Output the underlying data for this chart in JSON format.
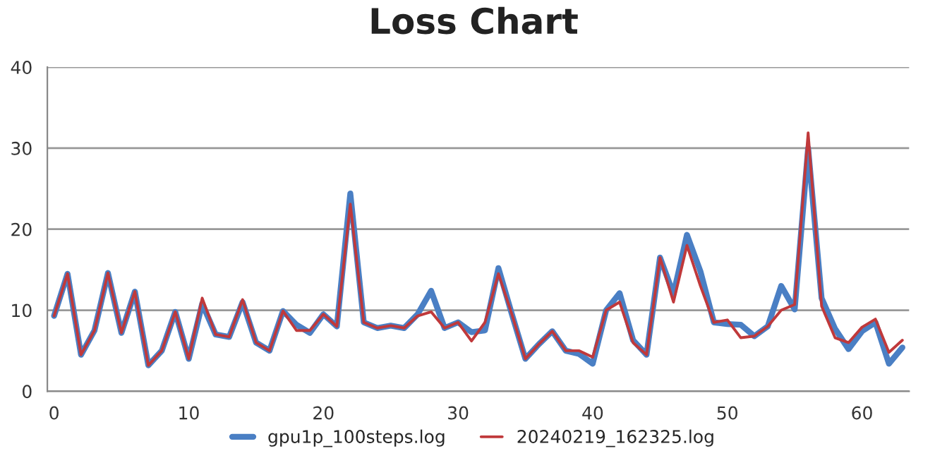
{
  "chart_data": {
    "type": "line",
    "title": "Loss Chart",
    "x": [
      0,
      1,
      2,
      3,
      4,
      5,
      6,
      7,
      8,
      9,
      10,
      11,
      12,
      13,
      14,
      15,
      16,
      17,
      18,
      19,
      20,
      21,
      22,
      23,
      24,
      25,
      26,
      27,
      28,
      29,
      30,
      31,
      32,
      33,
      34,
      35,
      36,
      37,
      38,
      39,
      40,
      41,
      42,
      43,
      44,
      45,
      46,
      47,
      48,
      49,
      50,
      51,
      52,
      53,
      54,
      55,
      56,
      57,
      58,
      59,
      60,
      61,
      62,
      63
    ],
    "series": [
      {
        "name": "gpu1p_100steps.log",
        "color": "#4a7fc4",
        "values": [
          9.3,
          14.5,
          4.5,
          7.5,
          14.6,
          7.2,
          12.3,
          3.2,
          5.0,
          9.8,
          4.0,
          10.8,
          7.0,
          6.7,
          11.0,
          6.0,
          5.0,
          9.9,
          8.2,
          7.2,
          9.5,
          8.0,
          24.4,
          8.5,
          7.8,
          8.1,
          7.8,
          9.5,
          12.4,
          7.8,
          8.5,
          7.3,
          7.5,
          15.2,
          9.5,
          4.0,
          5.8,
          7.4,
          5.0,
          4.6,
          3.4,
          10.0,
          12.1,
          6.3,
          4.5,
          16.5,
          12.0,
          19.3,
          14.8,
          8.5,
          8.3,
          8.2,
          6.8,
          8.0,
          13.0,
          10.1,
          30.0,
          11.5,
          7.7,
          5.2,
          7.4,
          8.5,
          3.4,
          5.4
        ]
      },
      {
        "name": "20240219_162325.log",
        "color": "#c0393b",
        "values": [
          9.3,
          14.5,
          4.5,
          7.5,
          14.6,
          7.2,
          12.3,
          3.2,
          5.0,
          9.8,
          4.0,
          11.5,
          7.0,
          6.7,
          11.3,
          6.0,
          5.0,
          9.9,
          7.5,
          7.5,
          9.5,
          8.0,
          23.1,
          8.5,
          7.8,
          8.1,
          7.8,
          9.3,
          9.8,
          7.8,
          8.5,
          6.2,
          8.5,
          14.5,
          9.5,
          4.0,
          5.8,
          7.4,
          5.0,
          5.0,
          4.2,
          10.0,
          11.0,
          6.0,
          4.5,
          16.5,
          11.0,
          18.0,
          13.0,
          8.5,
          8.8,
          6.6,
          6.8,
          8.0,
          10.0,
          10.7,
          31.9,
          10.5,
          6.6,
          6.0,
          7.9,
          8.9,
          4.8,
          6.3
        ]
      }
    ],
    "xlim": [
      -0.5,
      63.5
    ],
    "xticks": [
      0,
      10,
      20,
      30,
      40,
      50,
      60
    ],
    "ylim": [
      0,
      40
    ],
    "yticks": [
      0,
      10,
      20,
      30,
      40
    ],
    "grid": "y",
    "legend": "bottom",
    "line_style": "solid"
  }
}
